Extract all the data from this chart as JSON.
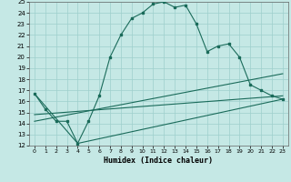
{
  "xlabel": "Humidex (Indice chaleur)",
  "ylabel": "",
  "xlim": [
    -0.5,
    23.5
  ],
  "ylim": [
    12,
    25
  ],
  "xticks": [
    0,
    1,
    2,
    3,
    4,
    5,
    6,
    7,
    8,
    9,
    10,
    11,
    12,
    13,
    14,
    15,
    16,
    17,
    18,
    19,
    20,
    21,
    22,
    23
  ],
  "yticks": [
    12,
    13,
    14,
    15,
    16,
    17,
    18,
    19,
    20,
    21,
    22,
    23,
    24,
    25
  ],
  "bg_color": "#c5e8e5",
  "grid_color": "#9ecfcc",
  "line_color": "#1a6b5a",
  "line1_x": [
    0,
    1,
    2,
    3,
    4,
    5,
    6,
    7,
    8,
    9,
    10,
    11,
    12,
    13,
    14,
    15,
    16,
    17,
    18,
    19,
    20,
    21,
    22,
    23
  ],
  "line1_y": [
    16.7,
    15.3,
    14.2,
    14.2,
    12.2,
    14.2,
    16.5,
    20.0,
    22.0,
    23.5,
    24.0,
    24.8,
    25.0,
    24.5,
    24.7,
    23.0,
    20.5,
    21.0,
    21.2,
    20.0,
    17.5,
    17.0,
    16.5,
    16.2
  ],
  "line2_x": [
    0,
    4,
    23
  ],
  "line2_y": [
    16.7,
    12.2,
    16.2
  ],
  "line3_x": [
    0,
    23
  ],
  "line3_y": [
    14.8,
    16.5
  ],
  "line4_x": [
    0,
    23
  ],
  "line4_y": [
    14.2,
    18.5
  ]
}
